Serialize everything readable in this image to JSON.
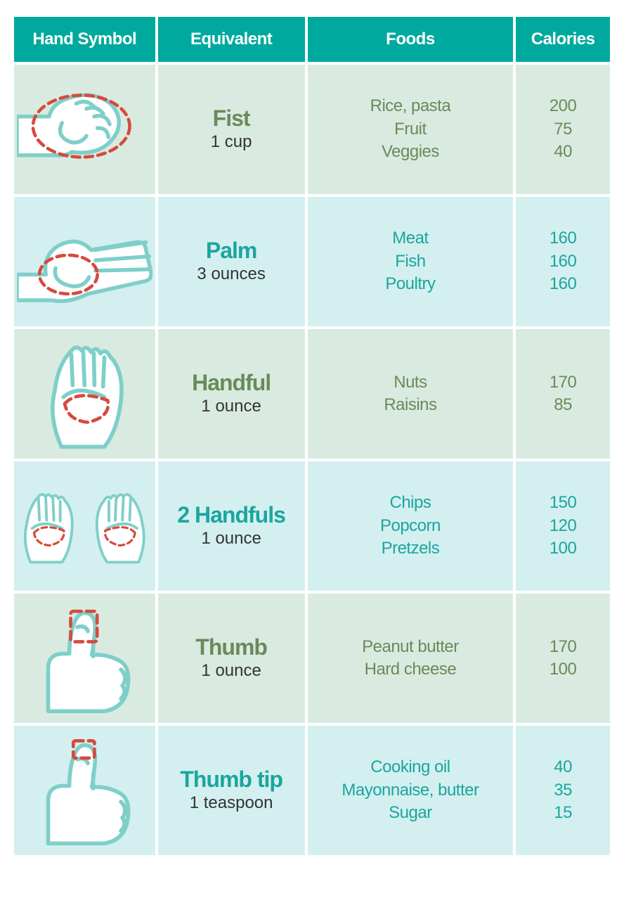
{
  "colors": {
    "header_bg": "#00a99d",
    "header_text": "#ffffff",
    "row_green_bg": "#d9ebe0",
    "row_green_text": "#6a8a5a",
    "row_teal_bg": "#d4eff0",
    "row_teal_text": "#1aa69e",
    "measure_text": "#333333",
    "hand_stroke": "#7fcfc9",
    "hand_fill": "#ffffff",
    "dash_stroke": "#d54b3d",
    "cell_font_size": 24,
    "name_font_size": 32
  },
  "columns": [
    "Hand Symbol",
    "Equivalent",
    "Foods",
    "Calories"
  ],
  "rows": [
    {
      "theme": "green",
      "hand": "fist",
      "name": "Fist",
      "measure": "1 cup",
      "foods": [
        "Rice, pasta",
        "Fruit",
        "Veggies"
      ],
      "calories": [
        "200",
        "75",
        "40"
      ]
    },
    {
      "theme": "teal",
      "hand": "palm",
      "name": "Palm",
      "measure": "3 ounces",
      "foods": [
        "Meat",
        "Fish",
        "Poultry"
      ],
      "calories": [
        "160",
        "160",
        "160"
      ]
    },
    {
      "theme": "green",
      "hand": "handful",
      "name": "Handful",
      "measure": "1 ounce",
      "foods": [
        "Nuts",
        "Raisins"
      ],
      "calories": [
        "170",
        "85"
      ]
    },
    {
      "theme": "teal",
      "hand": "two-handfuls",
      "name": "2 Handfuls",
      "measure": "1 ounce",
      "foods": [
        "Chips",
        "Popcorn",
        "Pretzels"
      ],
      "calories": [
        "150",
        "120",
        "100"
      ]
    },
    {
      "theme": "green",
      "hand": "thumb",
      "name": "Thumb",
      "measure": "1 ounce",
      "foods": [
        "Peanut butter",
        "Hard cheese"
      ],
      "calories": [
        "170",
        "100"
      ]
    },
    {
      "theme": "teal",
      "hand": "thumb-tip",
      "name": "Thumb tip",
      "measure": "1 teaspoon",
      "foods": [
        "Cooking oil",
        "Mayonnaise, butter",
        "Sugar"
      ],
      "calories": [
        "40",
        "35",
        "15"
      ]
    }
  ]
}
